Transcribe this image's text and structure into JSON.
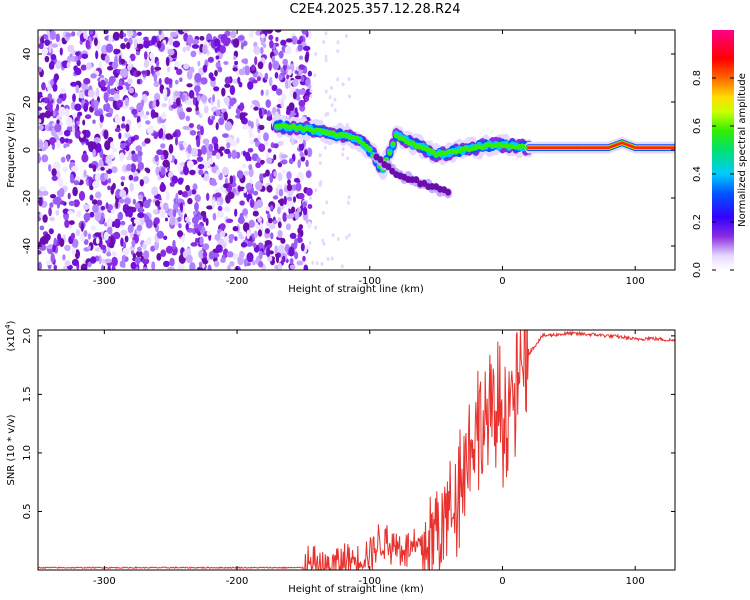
{
  "title": "C2E4.2025.357.12.28.R24",
  "chart_data": [
    {
      "type": "heatmap",
      "name": "spectrogram",
      "xlabel": "Height of straight line (km)",
      "ylabel": "Frequency (Hz)",
      "xlim": [
        -350,
        130
      ],
      "ylim": [
        -50,
        50
      ],
      "xticks": [
        -300,
        -200,
        -100,
        0,
        100
      ],
      "yticks": [
        -40,
        -20,
        0,
        20,
        40
      ],
      "noise_region_x": [
        -350,
        -145
      ],
      "signal_track": {
        "x": [
          -170,
          -150,
          -130,
          -110,
          -100,
          -90,
          -80,
          -70,
          -60,
          -50,
          -40,
          -30,
          -20,
          -10,
          0,
          20,
          40,
          60,
          80,
          90,
          100,
          130
        ],
        "y": [
          10,
          9,
          7,
          5,
          0,
          -8,
          6,
          3,
          1,
          -2,
          -1,
          0,
          1,
          2,
          2,
          1,
          1,
          1,
          1,
          3,
          1,
          1
        ]
      },
      "tail_track": {
        "x": [
          -95,
          -80,
          -65,
          -50,
          -40
        ],
        "y": [
          -3,
          -10,
          -13,
          -16,
          -18
        ]
      },
      "colorbar": {
        "label": "Normalized spectral amplitude",
        "ticks": [
          0.0,
          0.2,
          0.4,
          0.6,
          0.8
        ],
        "tick_labels": [
          "0.0",
          "0.2",
          "0.4",
          "0.6",
          "0.8"
        ],
        "range": [
          0,
          1
        ]
      }
    },
    {
      "type": "line",
      "name": "snr",
      "xlabel": "Height of straight line (km)",
      "ylabel": "SNR (10 * v/v)",
      "multiplier_label": "(x10",
      "multiplier_exp": "4",
      "xlim": [
        -350,
        130
      ],
      "ylim": [
        0,
        2.05
      ],
      "xticks": [
        -300,
        -200,
        -100,
        0,
        100
      ],
      "yticks": [
        0.5,
        1.0,
        1.5,
        2.0
      ],
      "ytick_labels": [
        "0.5",
        "1.0",
        "1.5",
        "2.0"
      ],
      "color": "#e8322e",
      "series": {
        "name": "SNR",
        "x": [
          -350,
          -150,
          -130,
          -110,
          -100,
          -90,
          -80,
          -70,
          -60,
          -50,
          -40,
          -30,
          -20,
          -10,
          0,
          10,
          20,
          30,
          50,
          70,
          90,
          100,
          110,
          130
        ],
        "y": [
          0.02,
          0.02,
          0.03,
          0.1,
          0.15,
          0.25,
          0.2,
          0.18,
          0.2,
          0.3,
          0.5,
          0.9,
          1.2,
          1.3,
          1.35,
          1.5,
          1.85,
          2.0,
          2.02,
          2.01,
          1.99,
          1.97,
          1.98,
          1.96
        ]
      }
    }
  ]
}
